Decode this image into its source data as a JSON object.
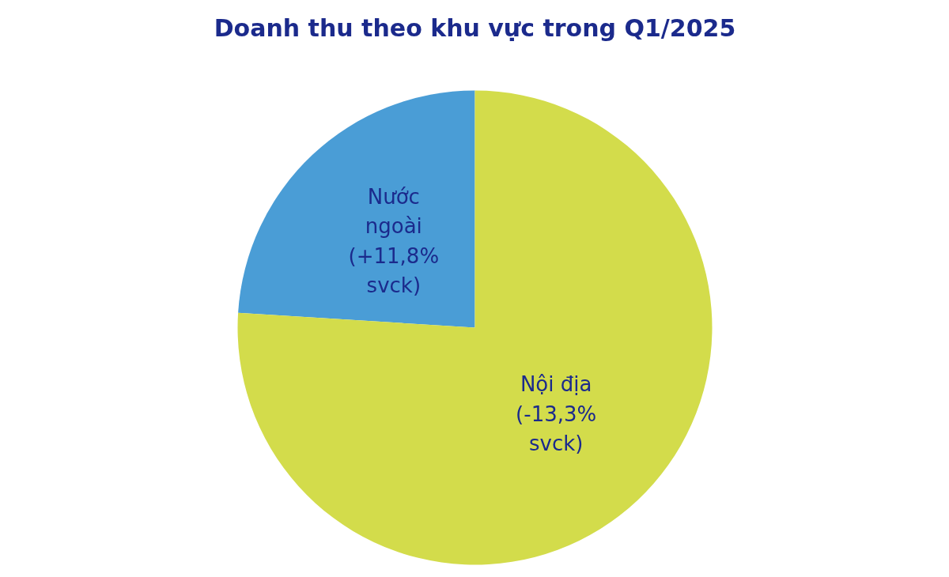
{
  "chart_data": {
    "type": "pie",
    "title": "Doanh thu theo khu vực trong Q1/2025",
    "categories": [
      "Nước ngoài (+11,8% svck)",
      "Nội địa (-13,3% svck)"
    ],
    "values": [
      24,
      76
    ],
    "colors": [
      "#4a9dd6",
      "#d3dc4b"
    ]
  }
}
